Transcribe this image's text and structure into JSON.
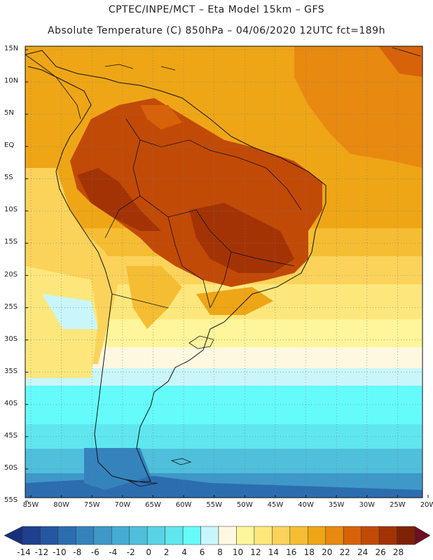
{
  "header": {
    "line1": "CPTEC/INPE/MCT –  Eta Model 15km – GFS",
    "line2": "Absolute Temperature (C) 850hPa – 04/06/2020 12UTC fct=189h"
  },
  "map": {
    "lat_labels": [
      "15N",
      "10N",
      "5N",
      "EQ",
      "5S",
      "10S",
      "15S",
      "20S",
      "25S",
      "30S",
      "35S",
      "40S",
      "45S",
      "50S",
      "55S"
    ],
    "lon_labels": [
      "85W",
      "80W",
      "75W",
      "70W",
      "65W",
      "60W",
      "55W",
      "50W",
      "45W",
      "40W",
      "35W",
      "30W",
      "25W",
      "20W"
    ],
    "lat_range": [
      15,
      -55
    ],
    "lon_range": [
      -85,
      -20
    ]
  },
  "colorbar": {
    "values": [
      -14,
      -12,
      -10,
      -8,
      -6,
      -4,
      -2,
      0,
      2,
      4,
      6,
      8,
      10,
      12,
      14,
      16,
      18,
      20,
      22,
      24,
      26,
      28
    ],
    "colors": [
      "#1f3f8f",
      "#2457a0",
      "#2c6db0",
      "#3583bd",
      "#3e98c8",
      "#46abd2",
      "#4fbfdc",
      "#57d3e5",
      "#5fe6ee",
      "#66fbfb",
      "#c9f6fa",
      "#fff8e1",
      "#fff59a",
      "#fde77c",
      "#fbd35a",
      "#f5bd33",
      "#eea616",
      "#e88910",
      "#d8620a",
      "#c24a07",
      "#a33305",
      "#7f2204"
    ],
    "low_arrow_color": "#17307a",
    "high_arrow_color": "#6a0f25"
  }
}
